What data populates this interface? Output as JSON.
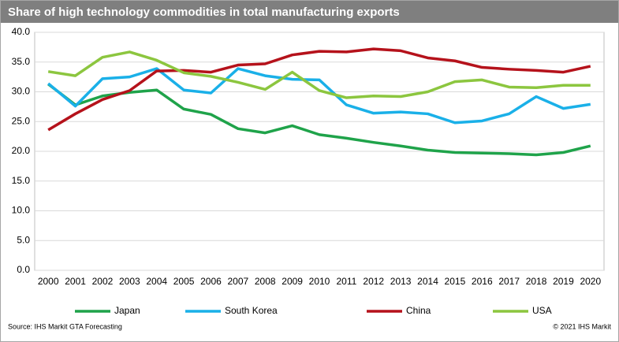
{
  "chart_data": {
    "type": "line",
    "title": "Share of high  technology commodities in total manufacturing exports",
    "categories": [
      "2000",
      "2001",
      "2002",
      "2003",
      "2004",
      "2005",
      "2006",
      "2007",
      "2008",
      "2009",
      "2010",
      "2011",
      "2012",
      "2013",
      "2014",
      "2015",
      "2016",
      "2017",
      "2018",
      "2019",
      "2020"
    ],
    "series": [
      {
        "name": "Japan",
        "color": "#1fa34a",
        "values": [
          31.3,
          27.8,
          29.3,
          29.9,
          30.3,
          27.1,
          26.2,
          23.8,
          23.1,
          24.3,
          22.8,
          22.2,
          21.5,
          20.9,
          20.2,
          19.8,
          19.7,
          19.6,
          19.4,
          19.8,
          20.9
        ]
      },
      {
        "name": "South Korea",
        "color": "#1ab0e8",
        "values": [
          31.4,
          27.6,
          32.2,
          32.5,
          33.9,
          30.3,
          29.8,
          33.9,
          32.7,
          32.1,
          32.0,
          27.8,
          26.4,
          26.6,
          26.3,
          24.8,
          25.1,
          26.3,
          29.2,
          27.2,
          27.9
        ]
      },
      {
        "name": "China",
        "color": "#b5121b",
        "values": [
          23.6,
          26.3,
          28.7,
          30.2,
          33.5,
          33.6,
          33.3,
          34.5,
          34.7,
          36.2,
          36.8,
          36.7,
          37.2,
          36.9,
          35.7,
          35.2,
          34.1,
          33.8,
          33.6,
          33.3,
          34.3
        ]
      },
      {
        "name": "USA",
        "color": "#8cc63f",
        "values": [
          33.4,
          32.7,
          35.8,
          36.7,
          35.3,
          33.2,
          32.6,
          31.6,
          30.4,
          33.3,
          30.2,
          29.0,
          29.3,
          29.2,
          30.0,
          31.7,
          32.0,
          30.8,
          30.7,
          31.1,
          31.1
        ]
      }
    ],
    "ylim": [
      0,
      40
    ],
    "yticks": [
      {
        "value": 0,
        "label": "0.0"
      },
      {
        "value": 5,
        "label": "5.0"
      },
      {
        "value": 10,
        "label": "10.0"
      },
      {
        "value": 15,
        "label": "15.0"
      },
      {
        "value": 20,
        "label": "20.0"
      },
      {
        "value": 25,
        "label": "25.0"
      },
      {
        "value": 30,
        "label": "30.0"
      },
      {
        "value": 35,
        "label": "35.0"
      },
      {
        "value": 40,
        "label": "40.0"
      }
    ],
    "grid": true,
    "legend": "bottom",
    "source": "Source: IHS Markit GTA Forecasting",
    "copyright": "© 2021 IHS Markit"
  }
}
